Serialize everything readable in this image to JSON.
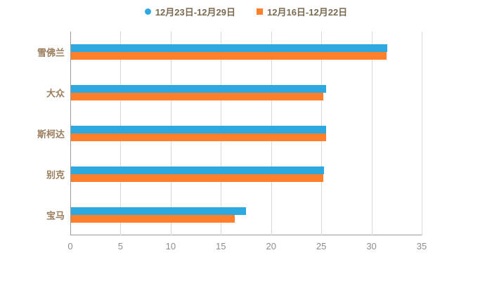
{
  "chart_data": {
    "type": "bar",
    "orientation": "horizontal",
    "title": "",
    "xlabel": "",
    "ylabel": "",
    "categories": [
      "雪佛兰",
      "大众",
      "斯柯达",
      "别克",
      "宝马"
    ],
    "series": [
      {
        "name": "12月23日-12月29日",
        "color": "#2EA9E0",
        "marker": "round",
        "values": [
          31.5,
          25.4,
          25.4,
          25.2,
          17.4
        ]
      },
      {
        "name": "12月16日-12月22日",
        "color": "#FF7F2B",
        "marker": "square",
        "values": [
          31.4,
          25.1,
          25.4,
          25.1,
          16.3
        ]
      }
    ],
    "xlim": [
      0,
      35
    ],
    "xticks": [
      0,
      5,
      10,
      15,
      20,
      25,
      30,
      35
    ],
    "grid": true,
    "legend_position": "top"
  },
  "colors": {
    "background": "#ffffff",
    "grid": "#d9d9d9",
    "axis": "#999999",
    "tick_label": "#8c8c8c",
    "category_label": "#9a7d5c",
    "legend_text": "#7a6a52"
  }
}
